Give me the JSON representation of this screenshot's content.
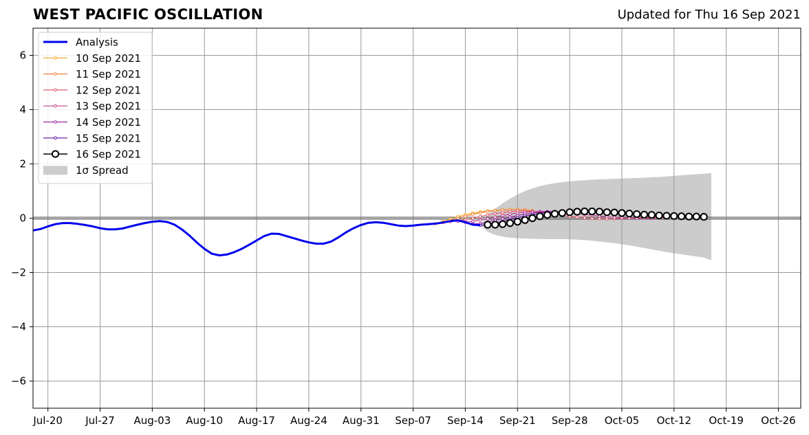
{
  "header": {
    "title": "WEST PACIFIC OSCILLATION",
    "updated": "Updated for Thu 16 Sep 2021"
  },
  "colors": {
    "analysis": "#0000ee",
    "spread": "#cccccc",
    "grid": "#999999",
    "zero_line": "#555555"
  },
  "chart_data": {
    "type": "line",
    "title": "WEST PACIFIC OSCILLATION",
    "xlabel": "",
    "ylabel": "",
    "x_range": [
      "2021-07-18",
      "2021-10-29"
    ],
    "ylim": [
      -7,
      7
    ],
    "yticks": [
      -6,
      -4,
      -2,
      0,
      2,
      4,
      6
    ],
    "ytick_labels": [
      "−6",
      "−4",
      "−2",
      "0",
      "2",
      "4",
      "6"
    ],
    "xticks": [
      "2021-07-20",
      "2021-07-27",
      "2021-08-03",
      "2021-08-10",
      "2021-08-17",
      "2021-08-24",
      "2021-08-31",
      "2021-09-07",
      "2021-09-14",
      "2021-09-21",
      "2021-09-28",
      "2021-10-05",
      "2021-10-12",
      "2021-10-19",
      "2021-10-26"
    ],
    "xtick_labels": [
      "Jul-20",
      "Jul-27",
      "Aug-03",
      "Aug-10",
      "Aug-17",
      "Aug-24",
      "Aug-31",
      "Sep-07",
      "Sep-14",
      "Sep-21",
      "Sep-28",
      "Oct-05",
      "Oct-12",
      "Oct-19",
      "Oct-26"
    ],
    "grid": true,
    "legend_position": "top-left",
    "legend": [
      {
        "label": "Analysis",
        "kind": "line",
        "color": "#0000ee"
      },
      {
        "label": "10 Sep 2021",
        "kind": "small-marker",
        "color": "#f5a623"
      },
      {
        "label": "11 Sep 2021",
        "kind": "small-marker",
        "color": "#f07f3c"
      },
      {
        "label": "12 Sep 2021",
        "kind": "small-marker",
        "color": "#e0596b"
      },
      {
        "label": "13 Sep 2021",
        "kind": "small-marker",
        "color": "#c2408f"
      },
      {
        "label": "14 Sep 2021",
        "kind": "small-marker",
        "color": "#9a25a6"
      },
      {
        "label": "15 Sep 2021",
        "kind": "small-marker",
        "color": "#5d0f9e"
      },
      {
        "label": "16 Sep 2021",
        "kind": "open-circle",
        "color": "#000000"
      },
      {
        "label": "1σ Spread",
        "kind": "patch",
        "color": "#cccccc"
      }
    ],
    "analysis": {
      "name": "Analysis",
      "color": "#0000ee",
      "x": [
        "2021-07-18",
        "2021-07-19",
        "2021-07-20",
        "2021-07-21",
        "2021-07-22",
        "2021-07-23",
        "2021-07-24",
        "2021-07-25",
        "2021-07-26",
        "2021-07-27",
        "2021-07-28",
        "2021-07-29",
        "2021-07-30",
        "2021-07-31",
        "2021-08-01",
        "2021-08-02",
        "2021-08-03",
        "2021-08-04",
        "2021-08-05",
        "2021-08-06",
        "2021-08-07",
        "2021-08-08",
        "2021-08-09",
        "2021-08-10",
        "2021-08-11",
        "2021-08-12",
        "2021-08-13",
        "2021-08-14",
        "2021-08-15",
        "2021-08-16",
        "2021-08-17",
        "2021-08-18",
        "2021-08-19",
        "2021-08-20",
        "2021-08-21",
        "2021-08-22",
        "2021-08-23",
        "2021-08-24",
        "2021-08-25",
        "2021-08-26",
        "2021-08-27",
        "2021-08-28",
        "2021-08-29",
        "2021-08-30",
        "2021-08-31",
        "2021-09-01",
        "2021-09-02",
        "2021-09-03",
        "2021-09-04",
        "2021-09-05",
        "2021-09-06",
        "2021-09-07",
        "2021-09-08",
        "2021-09-09",
        "2021-09-10",
        "2021-09-11",
        "2021-09-12",
        "2021-09-13",
        "2021-09-14",
        "2021-09-15",
        "2021-09-16"
      ],
      "y": [
        -0.45,
        -0.4,
        -0.3,
        -0.22,
        -0.18,
        -0.18,
        -0.21,
        -0.25,
        -0.3,
        -0.37,
        -0.41,
        -0.41,
        -0.38,
        -0.31,
        -0.24,
        -0.18,
        -0.13,
        -0.11,
        -0.14,
        -0.24,
        -0.42,
        -0.64,
        -0.9,
        -1.13,
        -1.31,
        -1.37,
        -1.34,
        -1.25,
        -1.13,
        -0.98,
        -0.82,
        -0.66,
        -0.57,
        -0.58,
        -0.66,
        -0.74,
        -0.82,
        -0.89,
        -0.94,
        -0.94,
        -0.86,
        -0.7,
        -0.52,
        -0.37,
        -0.25,
        -0.17,
        -0.15,
        -0.17,
        -0.22,
        -0.27,
        -0.29,
        -0.27,
        -0.24,
        -0.22,
        -0.2,
        -0.16,
        -0.11,
        -0.08,
        -0.15,
        -0.24,
        -0.26
      ]
    },
    "forecasts": [
      {
        "name": "10 Sep 2021",
        "start": "2021-09-10",
        "color": "#f5a623",
        "y": [
          -0.2,
          -0.12,
          -0.03,
          0.06,
          0.13,
          0.19,
          0.23,
          0.27,
          0.29,
          0.31,
          0.32,
          0.32,
          0.31,
          0.28
        ]
      },
      {
        "name": "11 Sep 2021",
        "start": "2021-09-11",
        "color": "#f07f3c",
        "y": [
          -0.16,
          -0.09,
          -0.01,
          0.07,
          0.14,
          0.2,
          0.25,
          0.28,
          0.3,
          0.31,
          0.31,
          0.3,
          0.27,
          0.23,
          0.18
        ]
      },
      {
        "name": "12 Sep 2021",
        "start": "2021-09-12",
        "color": "#e0596b",
        "y": [
          -0.13,
          -0.1,
          -0.06,
          0.0,
          0.06,
          0.12,
          0.17,
          0.21,
          0.24,
          0.26,
          0.26,
          0.25,
          0.22,
          0.19,
          0.15,
          0.11,
          0.07,
          0.04,
          0.01,
          -0.01,
          -0.02,
          -0.03,
          -0.02,
          -0.01,
          0.0,
          0.01,
          0.02,
          0.02,
          0.02,
          0.02
        ]
      },
      {
        "name": "13 Sep 2021",
        "start": "2021-09-13",
        "color": "#c2408f",
        "y": [
          -0.12,
          -0.14,
          -0.12,
          -0.07,
          -0.02,
          0.04,
          0.1,
          0.15,
          0.19,
          0.22,
          0.24,
          0.25,
          0.25,
          0.24,
          0.22,
          0.2,
          0.17,
          0.14,
          0.11,
          0.08,
          0.05,
          0.03,
          0.01,
          0.0,
          -0.01,
          -0.01,
          -0.01,
          0.0,
          0.01
        ]
      },
      {
        "name": "14 Sep 2021",
        "start": "2021-09-14",
        "color": "#9a25a6",
        "y": [
          -0.15,
          -0.21,
          -0.2,
          -0.14,
          -0.08,
          -0.02,
          0.04,
          0.1,
          0.15,
          0.19,
          0.22,
          0.24,
          0.25
        ]
      },
      {
        "name": "15 Sep 2021",
        "start": "2021-09-15",
        "color": "#5d0f9e",
        "y": [
          -0.22,
          -0.26,
          -0.24,
          -0.18,
          -0.12,
          -0.05,
          0.02,
          0.08,
          0.13,
          0.18,
          0.21,
          0.23,
          0.24
        ]
      },
      {
        "name": "16 Sep 2021",
        "start": "2021-09-17",
        "color": "#000000",
        "y": [
          -0.24,
          -0.24,
          -0.22,
          -0.18,
          -0.13,
          -0.07,
          0.0,
          0.07,
          0.12,
          0.16,
          0.19,
          0.22,
          0.24,
          0.25,
          0.25,
          0.24,
          0.22,
          0.21,
          0.19,
          0.17,
          0.15,
          0.13,
          0.12,
          0.1,
          0.09,
          0.08,
          0.07,
          0.06,
          0.06,
          0.05
        ]
      }
    ],
    "spread": {
      "name": "1σ Spread",
      "start": "2021-09-16",
      "upper": [
        -0.26,
        0.15,
        0.35,
        0.55,
        0.72,
        0.87,
        1.0,
        1.1,
        1.18,
        1.24,
        1.29,
        1.33,
        1.36,
        1.38,
        1.4,
        1.42,
        1.43,
        1.44,
        1.45,
        1.46,
        1.47,
        1.48,
        1.49,
        1.51,
        1.52,
        1.54,
        1.56,
        1.58,
        1.6,
        1.62,
        1.64,
        1.66
      ],
      "lower": [
        -0.26,
        -0.5,
        -0.62,
        -0.68,
        -0.72,
        -0.74,
        -0.75,
        -0.76,
        -0.77,
        -0.77,
        -0.77,
        -0.77,
        -0.78,
        -0.79,
        -0.81,
        -0.83,
        -0.86,
        -0.89,
        -0.92,
        -0.96,
        -1.0,
        -1.05,
        -1.1,
        -1.15,
        -1.2,
        -1.25,
        -1.29,
        -1.33,
        -1.37,
        -1.41,
        -1.45,
        -1.55
      ]
    }
  }
}
